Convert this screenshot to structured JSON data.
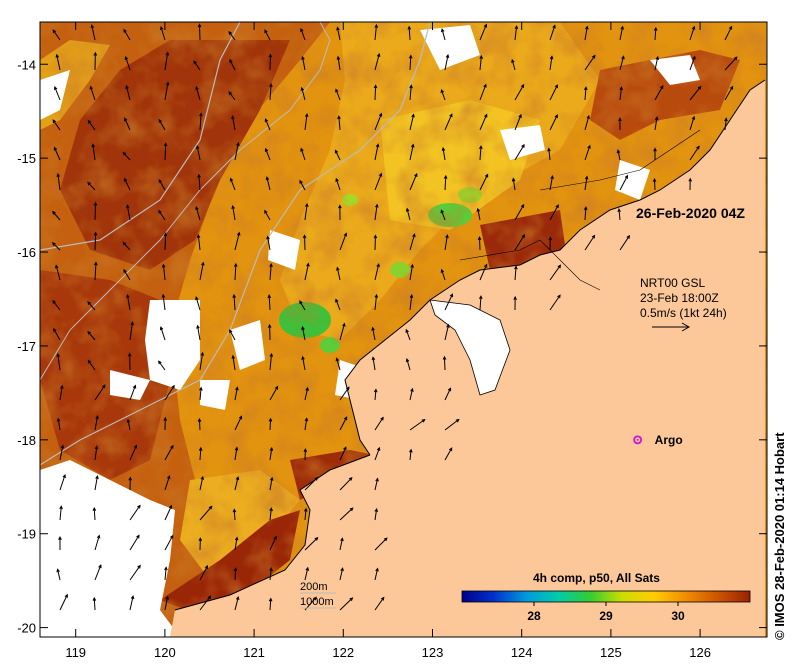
{
  "title": "26-Feb-2020 04Z",
  "credit": "© IMOS 28-Feb-2020 01:14 Hobart",
  "current_model": {
    "name": "NRT00 GSL",
    "time": "23-Feb 18:00Z",
    "scale": "0.5m/s (1kt 24h)"
  },
  "argo": {
    "label": "Argo",
    "lon": 125.3,
    "lat": -18.0,
    "color": "#cc22cc"
  },
  "isobaths": {
    "shallow": "200m",
    "deep": "1000m"
  },
  "colorbar": {
    "title": "4h comp, p50, All Sats",
    "min": 27.0,
    "max": 31.0,
    "ticks": [
      "28",
      "29",
      "30"
    ],
    "tick_values": [
      28,
      29,
      30
    ],
    "stops": [
      "#00008b",
      "#0033cc",
      "#0099dd",
      "#00ccaa",
      "#33cc33",
      "#ccdd00",
      "#ffcc00",
      "#f08c00",
      "#cc5500",
      "#992200"
    ]
  },
  "axes": {
    "lon_ticks": [
      "119",
      "120",
      "121",
      "122",
      "123",
      "124",
      "125",
      "126"
    ],
    "lat_ticks": [
      "-14",
      "-15",
      "-16",
      "-17",
      "-18",
      "-19",
      "-20"
    ],
    "lon_range": [
      118.6,
      126.75
    ],
    "lat_range": [
      -20.1,
      -13.55
    ]
  },
  "colors": {
    "land": "#fcc89a",
    "sst_hot": "#9a2a08",
    "sst_warm": "#cc5a12",
    "sst_mid": "#e0880f",
    "sst_cool": "#f0b020",
    "cloud": "#ffffff"
  }
}
